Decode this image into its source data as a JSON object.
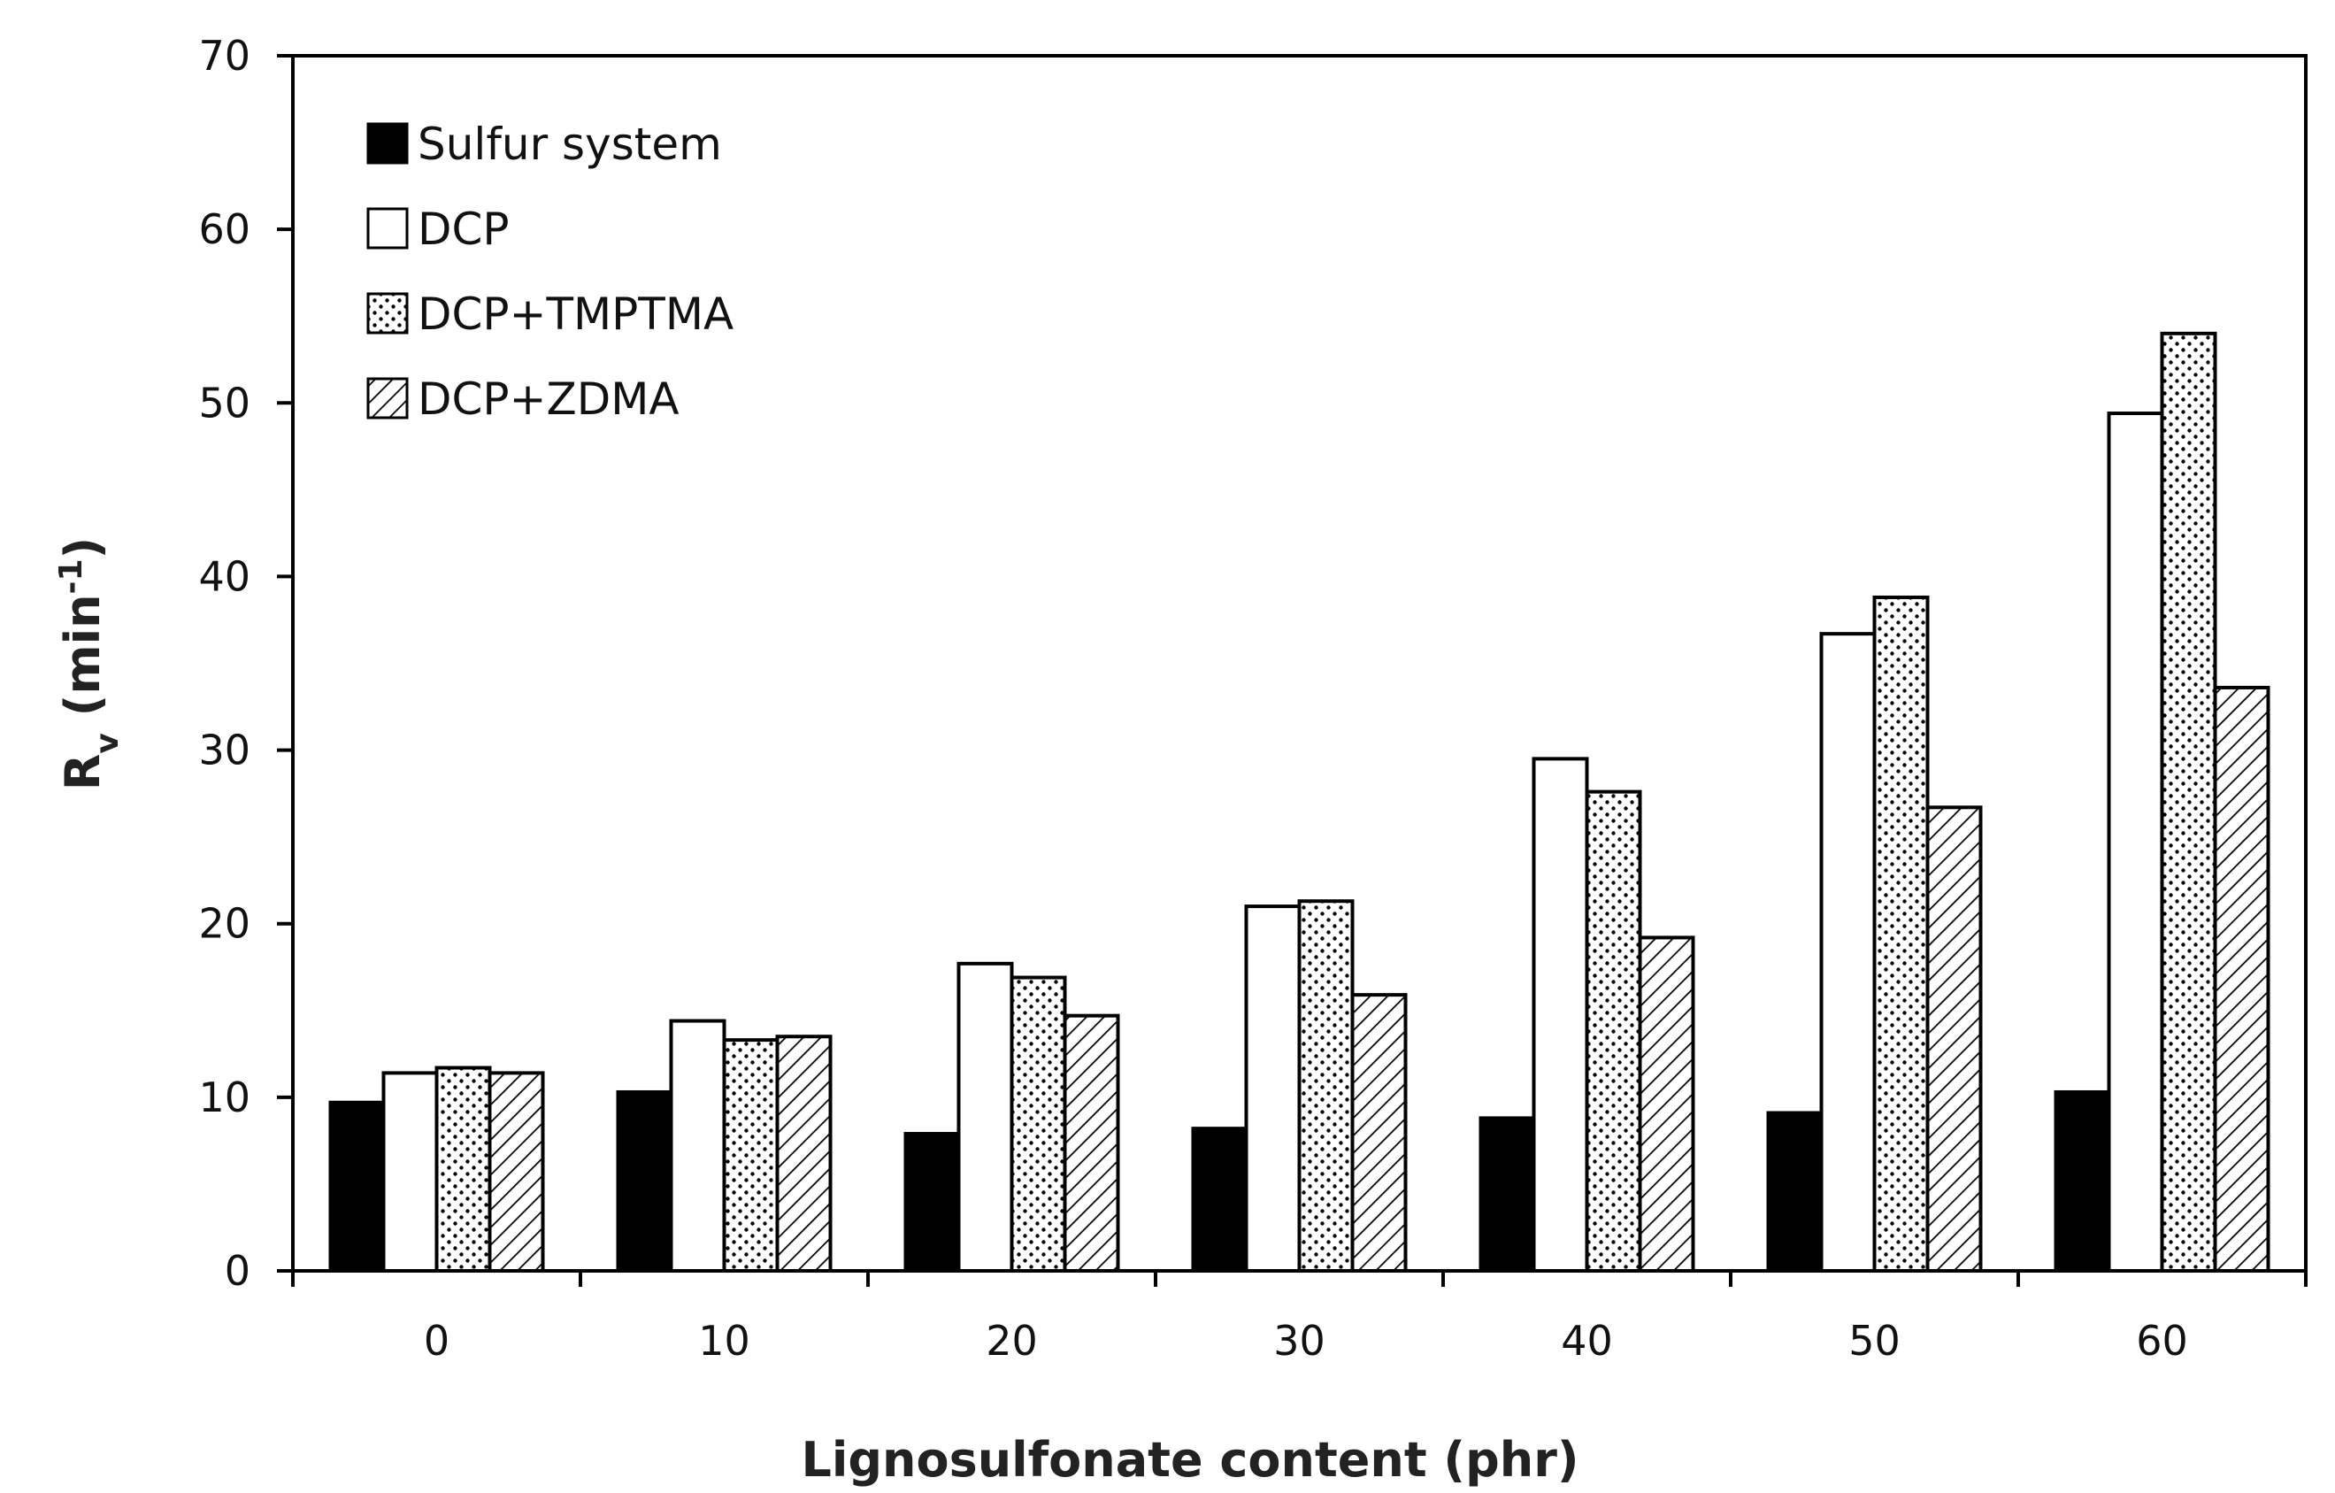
{
  "chart_data": {
    "type": "bar",
    "title": "",
    "xlabel": "Lignosulfonate content (phr)",
    "ylabel_main": "R",
    "ylabel_sub": "v",
    "ylabel_unit": " (min",
    "ylabel_sup": "-1",
    "ylabel_close": ")",
    "categories": [
      "0",
      "10",
      "20",
      "30",
      "40",
      "50",
      "60"
    ],
    "ylim": [
      0,
      70
    ],
    "yticks": [
      0,
      10,
      20,
      30,
      40,
      50,
      60,
      70
    ],
    "grid": false,
    "legend_position": "top-left",
    "series": [
      {
        "name": "Sulfur system",
        "fill": "solid",
        "color": "#000000",
        "values": [
          9.7,
          10.3,
          7.9,
          8.2,
          8.8,
          9.1,
          10.3
        ]
      },
      {
        "name": "DCP",
        "fill": "empty",
        "color": "#ffffff",
        "values": [
          11.4,
          14.4,
          17.7,
          21.0,
          29.5,
          36.7,
          49.4
        ]
      },
      {
        "name": "DCP+TMPTMA",
        "fill": "dotted",
        "color": "#ffffff",
        "values": [
          11.7,
          13.3,
          16.9,
          21.3,
          27.6,
          38.8,
          54.0
        ]
      },
      {
        "name": "DCP+ZDMA",
        "fill": "hatched",
        "color": "#ffffff",
        "values": [
          11.4,
          13.5,
          14.7,
          15.9,
          19.2,
          26.7,
          33.6
        ]
      }
    ]
  }
}
